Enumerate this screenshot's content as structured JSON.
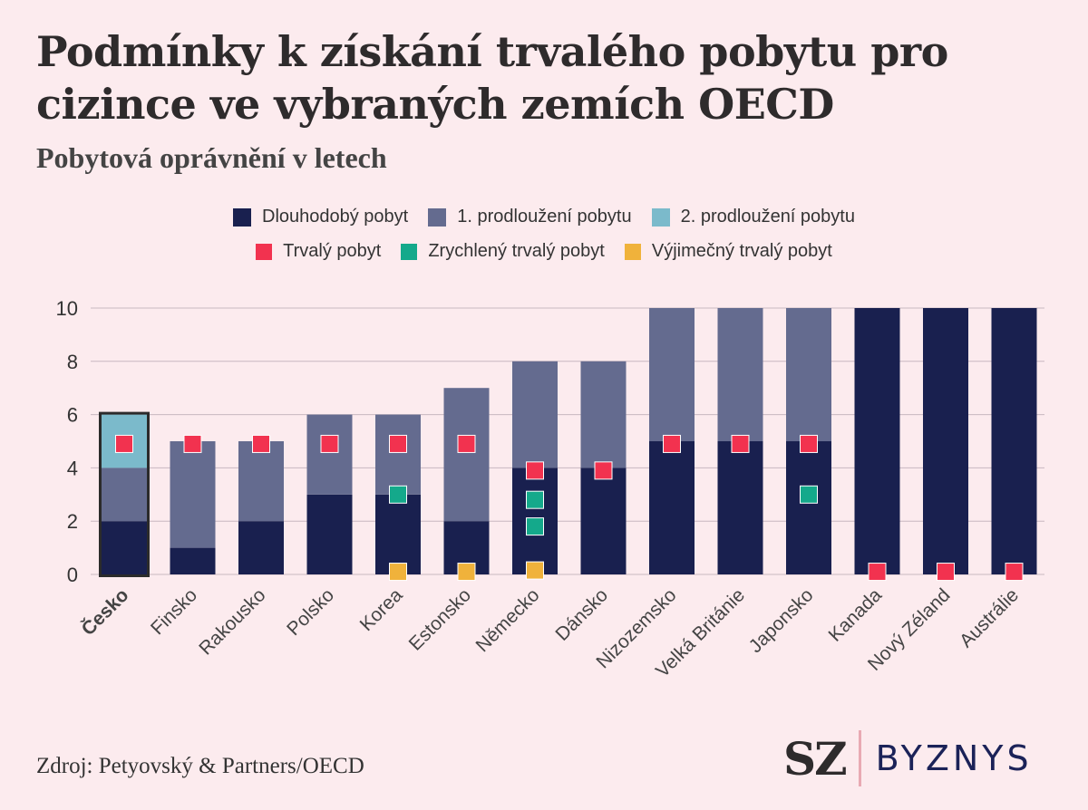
{
  "title": "Podmínky k získání trvalého pobytu pro cizince ve vybraných zemích OECD",
  "subtitle": "Pobytová oprávnění v letech",
  "source": "Zdroj: Petyovský & Partners/OECD",
  "brand": {
    "left": "SZ",
    "right": "BYZNYS"
  },
  "colors": {
    "background": "#fcebee",
    "dlouhodoby": "#19204f",
    "prodlouzeni1": "#646b8f",
    "prodlouzeni2": "#7bbacb",
    "trvaly": "#f2324f",
    "zrychleny": "#14a98b",
    "vyjimecny": "#f0b23b",
    "grid": "#c8b8c0"
  },
  "legend": [
    {
      "label": "Dlouhodobý pobyt",
      "color": "#19204f",
      "kind": "bar"
    },
    {
      "label": "1. prodloužení pobytu",
      "color": "#646b8f",
      "kind": "bar"
    },
    {
      "label": "2. prodloužení pobytu",
      "color": "#7bbacb",
      "kind": "bar"
    },
    {
      "label": "Trvalý pobyt",
      "color": "#f2324f",
      "kind": "marker"
    },
    {
      "label": "Zrychlený trvalý pobyt",
      "color": "#14a98b",
      "kind": "marker"
    },
    {
      "label": "Výjimečný trvalý pobyt",
      "color": "#f0b23b",
      "kind": "marker"
    }
  ],
  "chart_data": {
    "type": "bar",
    "stacked": true,
    "ylim": [
      0,
      10
    ],
    "yticks": [
      0,
      2,
      4,
      6,
      8,
      10
    ],
    "grid": true,
    "highlight_category": "Česko",
    "categories": [
      "Česko",
      "Finsko",
      "Rakousko",
      "Polsko",
      "Korea",
      "Estonsko",
      "Německo",
      "Dánsko",
      "Nizozemsko",
      "Velká Británie",
      "Japonsko",
      "Kanada",
      "Nový Zéland",
      "Austrálie"
    ],
    "series": [
      {
        "name": "Dlouhodobý pobyt",
        "values": [
          2,
          1,
          2,
          3,
          3,
          2,
          4,
          4,
          5,
          5,
          5,
          10,
          10,
          10
        ]
      },
      {
        "name": "1. prodloužení pobytu",
        "values": [
          2,
          4,
          3,
          3,
          3,
          5,
          4,
          4,
          5,
          5,
          5,
          0,
          0,
          0
        ]
      },
      {
        "name": "2. prodloužení pobytu",
        "values": [
          2,
          0,
          0,
          0,
          0,
          0,
          0,
          0,
          0,
          0,
          0,
          0,
          0,
          0
        ]
      }
    ],
    "markers": [
      {
        "name": "Trvalý pobyt",
        "points": [
          [
            "Česko",
            4.9
          ],
          [
            "Finsko",
            4.9
          ],
          [
            "Rakousko",
            4.9
          ],
          [
            "Polsko",
            4.9
          ],
          [
            "Korea",
            4.9
          ],
          [
            "Estonsko",
            4.9
          ],
          [
            "Německo",
            3.9
          ],
          [
            "Dánsko",
            3.9
          ],
          [
            "Nizozemsko",
            4.9
          ],
          [
            "Velká Británie",
            4.9
          ],
          [
            "Japonsko",
            4.9
          ],
          [
            "Kanada",
            0.1
          ],
          [
            "Nový Zéland",
            0.1
          ],
          [
            "Austrálie",
            0.1
          ]
        ]
      },
      {
        "name": "Zrychlený trvalý pobyt",
        "points": [
          [
            "Korea",
            3.0
          ],
          [
            "Německo",
            2.8
          ],
          [
            "Německo",
            1.8
          ],
          [
            "Japonsko",
            3.0
          ]
        ]
      },
      {
        "name": "Výjimečný trvalý pobyt",
        "points": [
          [
            "Korea",
            0.1
          ],
          [
            "Estonsko",
            0.1
          ],
          [
            "Německo",
            0.15
          ]
        ]
      }
    ]
  }
}
